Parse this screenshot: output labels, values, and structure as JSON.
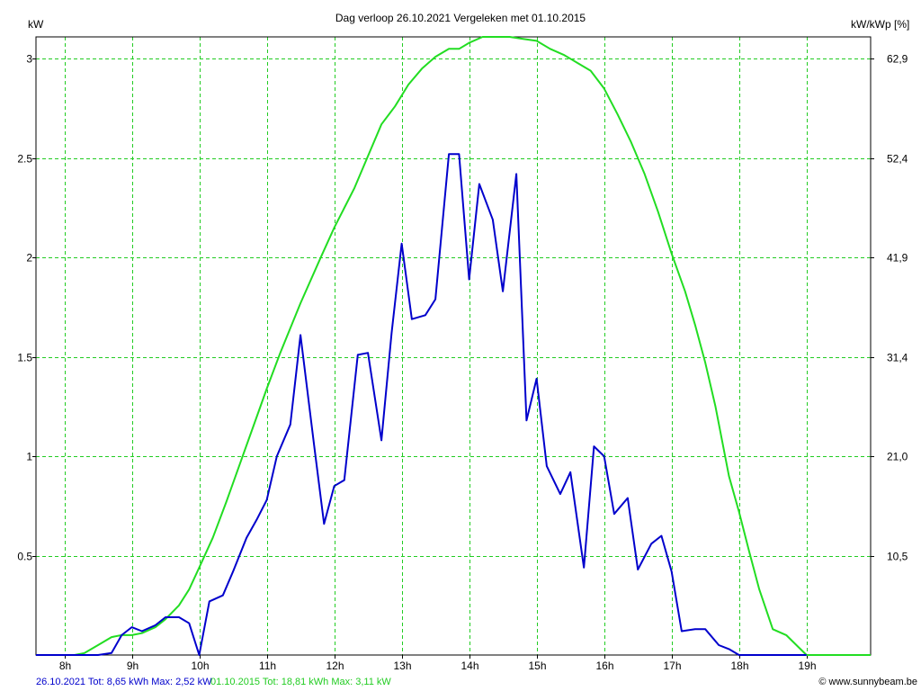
{
  "chart_data": {
    "type": "line",
    "title": "Dag  verloop 26.10.2021   Vergeleken met 01.10.2015",
    "ylabel_left": "kW",
    "ylabel_right": "kW/kWp [%]",
    "xlim": [
      7.58,
      19.95
    ],
    "ylim": [
      0,
      3.11
    ],
    "grid": true,
    "x_ticks": [
      8,
      9,
      10,
      11,
      12,
      13,
      14,
      15,
      16,
      17,
      18,
      19
    ],
    "x_tick_labels": [
      "8h",
      "9h",
      "10h",
      "11h",
      "12h",
      "13h",
      "14h",
      "15h",
      "16h",
      "17h",
      "18h",
      "19h"
    ],
    "y_ticks": [
      0.5,
      1.0,
      1.5,
      2.0,
      2.5,
      3.0
    ],
    "y_tick_labels": [
      "0.5",
      "1",
      "1.5",
      "2",
      "2.5",
      "3"
    ],
    "y_right_ticks": [
      0.5,
      1.0,
      1.5,
      2.0,
      2.5,
      3.0
    ],
    "y_right_tick_labels": [
      "10,5",
      "21,0",
      "31,4",
      "41,9",
      "52,4",
      "62,9"
    ],
    "series": [
      {
        "name": "26.10.2021",
        "color": "#0000cc",
        "x": [
          7.58,
          8.15,
          8.3,
          8.5,
          8.7,
          8.85,
          9.0,
          9.15,
          9.35,
          9.5,
          9.7,
          9.85,
          10.0,
          10.15,
          10.35,
          10.5,
          10.7,
          10.85,
          11.0,
          11.15,
          11.35,
          11.5,
          11.7,
          11.85,
          12.0,
          12.15,
          12.35,
          12.5,
          12.7,
          12.85,
          13.0,
          13.15,
          13.35,
          13.5,
          13.7,
          13.85,
          14.0,
          14.15,
          14.35,
          14.5,
          14.7,
          14.85,
          15.0,
          15.15,
          15.35,
          15.5,
          15.7,
          15.85,
          16.0,
          16.15,
          16.35,
          16.5,
          16.7,
          16.85,
          17.0,
          17.15,
          17.35,
          17.5,
          17.7,
          17.85,
          18.0,
          18.5,
          19.0
        ],
        "y": [
          0,
          0,
          0,
          0,
          0.01,
          0.1,
          0.14,
          0.12,
          0.15,
          0.19,
          0.19,
          0.16,
          0.0,
          0.27,
          0.3,
          0.42,
          0.59,
          0.68,
          0.78,
          1.0,
          1.16,
          1.61,
          1.06,
          0.66,
          0.85,
          0.88,
          1.51,
          1.52,
          1.08,
          1.62,
          2.07,
          1.69,
          1.71,
          1.79,
          2.52,
          2.52,
          1.89,
          2.37,
          2.19,
          1.83,
          2.42,
          1.18,
          1.39,
          0.95,
          0.81,
          0.92,
          0.44,
          1.05,
          1.0,
          0.71,
          0.79,
          0.43,
          0.56,
          0.6,
          0.42,
          0.12,
          0.13,
          0.13,
          0.05,
          0.03,
          0.0,
          0.0,
          0.0
        ]
      },
      {
        "name": "01.10.2015",
        "color": "#22dd22",
        "x": [
          7.58,
          8.15,
          8.3,
          8.5,
          8.7,
          8.85,
          9.0,
          9.15,
          9.35,
          9.5,
          9.7,
          9.85,
          10.0,
          10.2,
          10.4,
          10.6,
          10.8,
          11.0,
          11.2,
          11.5,
          11.8,
          12.0,
          12.3,
          12.5,
          12.7,
          12.9,
          13.1,
          13.3,
          13.5,
          13.7,
          13.85,
          14.0,
          14.2,
          14.4,
          14.6,
          14.8,
          15.0,
          15.2,
          15.4,
          15.6,
          15.8,
          16.0,
          16.2,
          16.4,
          16.6,
          16.8,
          17.0,
          17.2,
          17.35,
          17.5,
          17.65,
          17.85,
          18.0,
          18.15,
          18.3,
          18.5,
          18.7,
          18.85,
          19.0,
          19.1,
          19.3,
          19.95
        ],
        "y": [
          0,
          0,
          0.01,
          0.05,
          0.09,
          0.1,
          0.1,
          0.11,
          0.14,
          0.18,
          0.25,
          0.33,
          0.44,
          0.59,
          0.77,
          0.96,
          1.15,
          1.34,
          1.52,
          1.77,
          2.0,
          2.15,
          2.35,
          2.51,
          2.67,
          2.76,
          2.87,
          2.95,
          3.01,
          3.05,
          3.05,
          3.08,
          3.11,
          3.11,
          3.11,
          3.1,
          3.09,
          3.05,
          3.02,
          2.98,
          2.94,
          2.85,
          2.72,
          2.58,
          2.42,
          2.23,
          2.02,
          1.83,
          1.66,
          1.47,
          1.25,
          0.9,
          0.72,
          0.52,
          0.33,
          0.13,
          0.1,
          0.05,
          0.0,
          0.0,
          0.0,
          0.0
        ]
      }
    ],
    "footer": {
      "series1_text": "26.10.2021 Tot: 8,65 kWh Max: 2,52 kW",
      "series2_text": "01.10.2015 Tot: 18,81 kWh Max: 3,11 kW",
      "credit": "© www.sunnybeam.be"
    }
  }
}
